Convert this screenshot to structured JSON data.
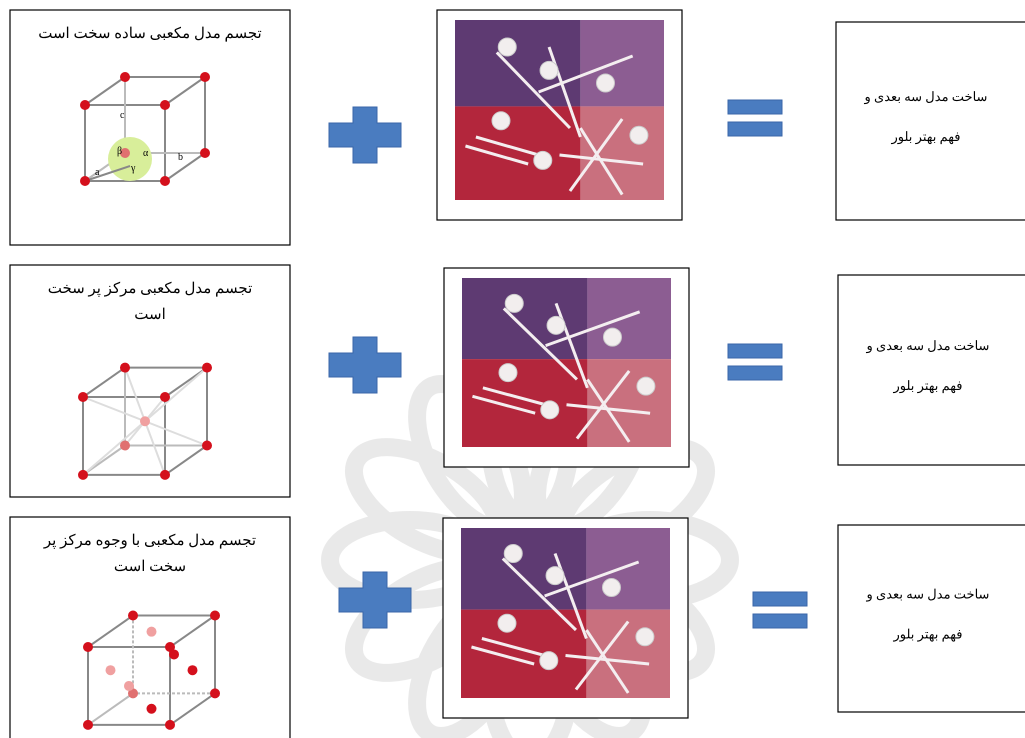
{
  "rows": [
    {
      "left_lines": [
        "تجسم مدل مکعبی ساده سخت است"
      ],
      "right_lines": [
        "ساخت مدل سه بعدی و",
        "فهم بهتر بلور"
      ],
      "cube_labels": [
        "a",
        "b",
        "c",
        "α",
        "β",
        "γ"
      ]
    },
    {
      "left_lines": [
        "تجسم مدل مکعبی مرکز پر سخت",
        "است"
      ],
      "right_lines": [
        "ساخت مدل سه بعدی و",
        "فهم بهتر بلور"
      ]
    },
    {
      "left_lines": [
        "تجسم مدل مکعبی با وجوه مرکز پر",
        "سخت است"
      ],
      "right_lines": [
        "ساخت مدل سه بعدی و",
        "فهم بهتر بلور"
      ]
    }
  ]
}
